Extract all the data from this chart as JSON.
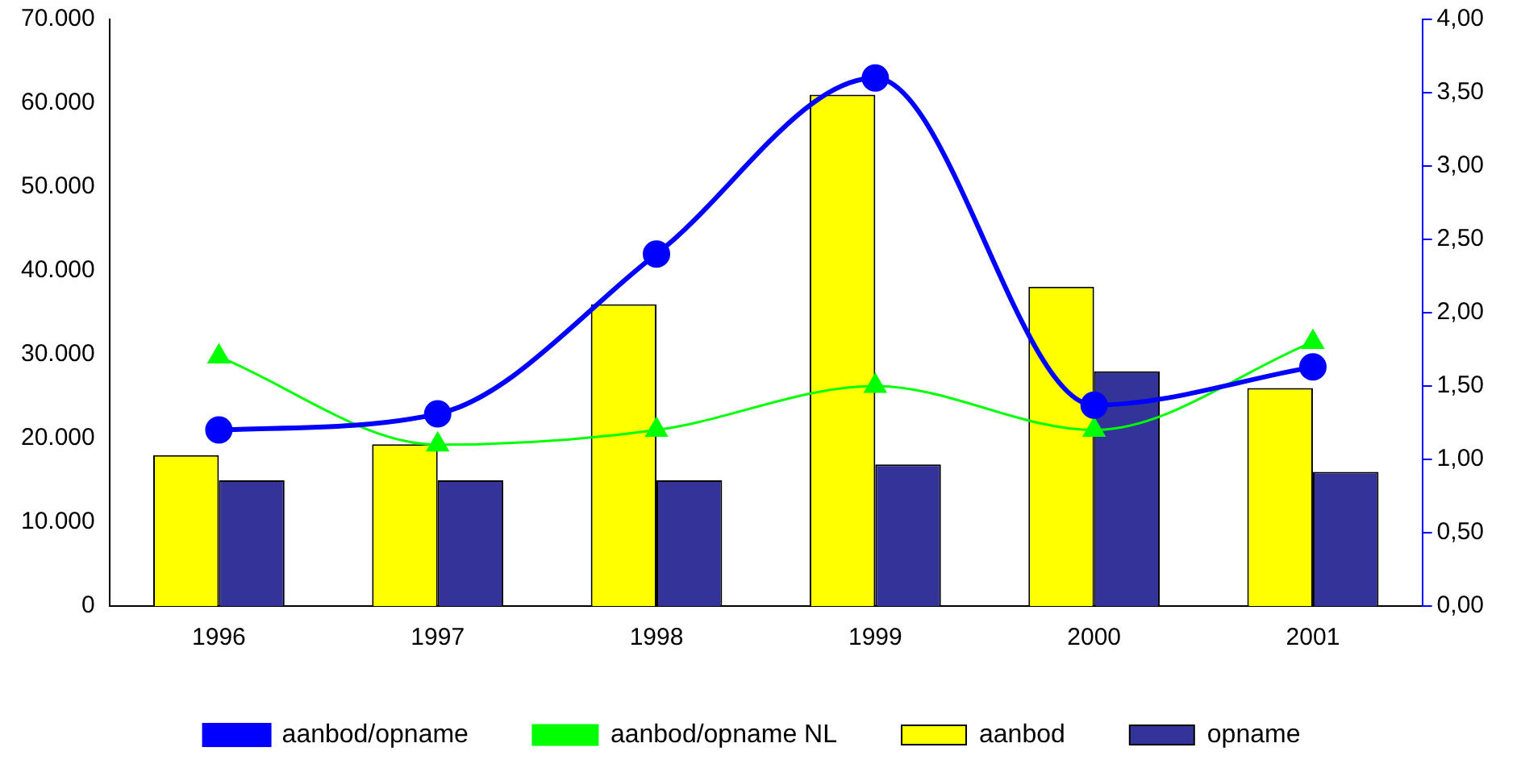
{
  "chart_data": {
    "type": "bar",
    "categories": [
      "1996",
      "1997",
      "1998",
      "1999",
      "2000",
      "2001"
    ],
    "series": [
      {
        "name": "aanbod",
        "color": "#ffff00",
        "values": [
          18000,
          19300,
          36000,
          61000,
          38100,
          26000
        ]
      },
      {
        "name": "opname",
        "color": "#333399",
        "values": [
          15000,
          15000,
          15000,
          16900,
          28000,
          16000
        ]
      },
      {
        "name": "aanbod/opname",
        "type": "line",
        "axis": "y2",
        "color": "#0000ff",
        "marker": "circle",
        "values": [
          1.2,
          1.31,
          2.4,
          3.6,
          1.37,
          1.63
        ]
      },
      {
        "name": "aanbod/opname NL",
        "type": "line",
        "axis": "y2",
        "color": "#00ff00",
        "marker": "triangle",
        "values": [
          1.7,
          1.1,
          1.2,
          1.5,
          1.2,
          1.8
        ]
      }
    ],
    "ylim": [
      0,
      70000
    ],
    "yticks": [
      0,
      {
        "value": 10000,
        "label": "10.000"
      },
      {
        "value": 20000,
        "label": "20.000"
      },
      {
        "value": 30000,
        "label": "30.000"
      },
      {
        "value": 40000,
        "label": "40.000"
      },
      {
        "value": 50000,
        "label": "50.000"
      },
      {
        "value": 60000,
        "label": "60.000"
      },
      {
        "value": 70000,
        "label": "70.000"
      }
    ],
    "y2lim": [
      0,
      4
    ],
    "y2ticks": [
      {
        "value": 0,
        "label": "0,00"
      },
      {
        "value": 0.5,
        "label": "0,50"
      },
      {
        "value": 1,
        "label": "1,00"
      },
      {
        "value": 1.5,
        "label": "1,50"
      },
      {
        "value": 2,
        "label": "2,00"
      },
      {
        "value": 2.5,
        "label": "2,50"
      },
      {
        "value": 3,
        "label": "3,00"
      },
      {
        "value": 3.5,
        "label": "3,50"
      },
      {
        "value": 4,
        "label": "4,00"
      }
    ],
    "grid": false,
    "legend": "bottom"
  }
}
